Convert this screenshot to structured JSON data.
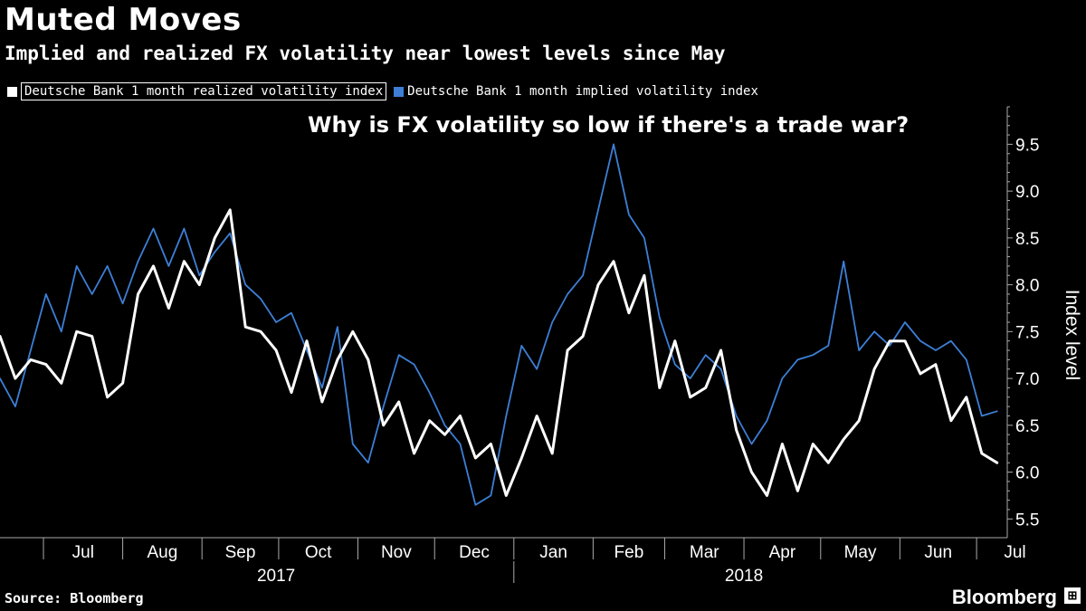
{
  "header": {
    "title": "Muted Moves",
    "subtitle": "Implied and realized FX volatility near lowest levels since May"
  },
  "annotation": "Why is FX volatility so low if there's a trade war?",
  "footer": {
    "source": "Source: Bloomberg",
    "brand": "Bloomberg"
  },
  "colors": {
    "background": "#000000",
    "realized": "#ffffff",
    "implied": "#3d7fd6",
    "axis": "#aaaaaa"
  },
  "chart_data": {
    "type": "line",
    "title": "Muted Moves",
    "subtitle": "Implied and realized FX volatility near lowest levels since May",
    "ylabel": "Index level",
    "xlabel": "",
    "ylim": [
      5.3,
      9.9
    ],
    "yticks": [
      5.5,
      6.0,
      6.5,
      7.0,
      7.5,
      8.0,
      8.5,
      9.0,
      9.5
    ],
    "xlim": [
      "2017-06-14",
      "2018-07-13"
    ],
    "x_tick_labels": [
      {
        "date": "2017-07-01",
        "label": "Jul"
      },
      {
        "date": "2017-08-01",
        "label": "Aug"
      },
      {
        "date": "2017-09-01",
        "label": "Sep"
      },
      {
        "date": "2017-10-01",
        "label": "Oct"
      },
      {
        "date": "2017-11-01",
        "label": "Nov"
      },
      {
        "date": "2017-12-01",
        "label": "Dec"
      },
      {
        "date": "2018-01-01",
        "label": "Jan"
      },
      {
        "date": "2018-02-01",
        "label": "Feb"
      },
      {
        "date": "2018-03-01",
        "label": "Mar"
      },
      {
        "date": "2018-04-01",
        "label": "Apr"
      },
      {
        "date": "2018-05-01",
        "label": "May"
      },
      {
        "date": "2018-06-01",
        "label": "Jun"
      },
      {
        "date": "2018-07-01",
        "label": "Jul"
      }
    ],
    "year_labels": [
      {
        "label": "2017",
        "date": "2017-09-30"
      },
      {
        "label": "2018",
        "date": "2018-04-01"
      }
    ],
    "year_divider_date": "2018-01-01",
    "grid": false,
    "legend_position": "top-left",
    "series": [
      {
        "name": "Deutsche Bank 1 month realized volatility index",
        "color": "#ffffff",
        "x": [
          "2017-06-14",
          "2017-06-20",
          "2017-06-26",
          "2017-07-02",
          "2017-07-08",
          "2017-07-14",
          "2017-07-20",
          "2017-07-26",
          "2017-08-01",
          "2017-08-07",
          "2017-08-13",
          "2017-08-19",
          "2017-08-25",
          "2017-08-31",
          "2017-09-06",
          "2017-09-12",
          "2017-09-18",
          "2017-09-24",
          "2017-09-30",
          "2017-10-06",
          "2017-10-12",
          "2017-10-18",
          "2017-10-24",
          "2017-10-30",
          "2017-11-05",
          "2017-11-11",
          "2017-11-17",
          "2017-11-23",
          "2017-11-29",
          "2017-12-05",
          "2017-12-11",
          "2017-12-17",
          "2017-12-23",
          "2017-12-29",
          "2018-01-04",
          "2018-01-10",
          "2018-01-16",
          "2018-01-22",
          "2018-01-28",
          "2018-02-03",
          "2018-02-09",
          "2018-02-15",
          "2018-02-21",
          "2018-02-27",
          "2018-03-05",
          "2018-03-11",
          "2018-03-17",
          "2018-03-23",
          "2018-03-29",
          "2018-04-04",
          "2018-04-10",
          "2018-04-16",
          "2018-04-22",
          "2018-04-28",
          "2018-05-04",
          "2018-05-10",
          "2018-05-16",
          "2018-05-22",
          "2018-05-28",
          "2018-06-03",
          "2018-06-09",
          "2018-06-15",
          "2018-06-21",
          "2018-06-27",
          "2018-07-03",
          "2018-07-09"
        ],
        "y": [
          7.45,
          7.0,
          7.2,
          7.15,
          6.95,
          7.5,
          7.45,
          6.8,
          6.95,
          7.9,
          8.2,
          7.75,
          8.25,
          8.0,
          8.5,
          8.8,
          7.55,
          7.5,
          7.3,
          6.85,
          7.4,
          6.75,
          7.2,
          7.5,
          7.2,
          6.5,
          6.75,
          6.2,
          6.55,
          6.4,
          6.6,
          6.15,
          6.3,
          5.75,
          6.15,
          6.6,
          6.2,
          7.3,
          7.45,
          8.0,
          8.25,
          7.7,
          8.1,
          6.9,
          7.4,
          6.8,
          6.9,
          7.3,
          6.45,
          6.0,
          5.75,
          6.3,
          5.8,
          6.3,
          6.1,
          6.35,
          6.55,
          7.1,
          7.4,
          7.4,
          7.05,
          7.15,
          6.55,
          6.8,
          6.2,
          6.1
        ]
      },
      {
        "name": "Deutsche Bank 1 month implied volatility index",
        "color": "#3d7fd6",
        "x": [
          "2017-06-14",
          "2017-06-20",
          "2017-06-26",
          "2017-07-02",
          "2017-07-08",
          "2017-07-14",
          "2017-07-20",
          "2017-07-26",
          "2017-08-01",
          "2017-08-07",
          "2017-08-13",
          "2017-08-19",
          "2017-08-25",
          "2017-08-31",
          "2017-09-06",
          "2017-09-12",
          "2017-09-18",
          "2017-09-24",
          "2017-09-30",
          "2017-10-06",
          "2017-10-12",
          "2017-10-18",
          "2017-10-24",
          "2017-10-30",
          "2017-11-05",
          "2017-11-11",
          "2017-11-17",
          "2017-11-23",
          "2017-11-29",
          "2017-12-05",
          "2017-12-11",
          "2017-12-17",
          "2017-12-23",
          "2017-12-29",
          "2018-01-04",
          "2018-01-10",
          "2018-01-16",
          "2018-01-22",
          "2018-01-28",
          "2018-02-03",
          "2018-02-09",
          "2018-02-15",
          "2018-02-21",
          "2018-02-27",
          "2018-03-05",
          "2018-03-11",
          "2018-03-17",
          "2018-03-23",
          "2018-03-29",
          "2018-04-04",
          "2018-04-10",
          "2018-04-16",
          "2018-04-22",
          "2018-04-28",
          "2018-05-04",
          "2018-05-10",
          "2018-05-16",
          "2018-05-22",
          "2018-05-28",
          "2018-06-03",
          "2018-06-09",
          "2018-06-15",
          "2018-06-21",
          "2018-06-27",
          "2018-07-03",
          "2018-07-09"
        ],
        "y": [
          7.0,
          6.7,
          7.3,
          7.9,
          7.5,
          8.2,
          7.9,
          8.2,
          7.8,
          8.25,
          8.6,
          8.2,
          8.6,
          8.1,
          8.35,
          8.55,
          8.0,
          7.85,
          7.6,
          7.7,
          7.3,
          6.9,
          7.55,
          6.3,
          6.1,
          6.7,
          7.25,
          7.15,
          6.85,
          6.5,
          6.3,
          5.65,
          5.75,
          6.6,
          7.35,
          7.1,
          7.6,
          7.9,
          8.1,
          8.8,
          9.5,
          8.75,
          8.5,
          7.65,
          7.15,
          7.0,
          7.25,
          7.1,
          6.6,
          6.3,
          6.55,
          7.0,
          7.2,
          7.25,
          7.35,
          8.25,
          7.3,
          7.5,
          7.35,
          7.6,
          7.4,
          7.3,
          7.4,
          7.2,
          6.6,
          6.65
        ]
      }
    ]
  }
}
